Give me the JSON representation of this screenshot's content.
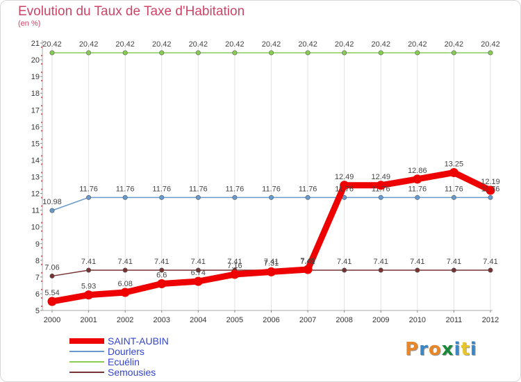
{
  "title": "Evolution du Taux de Taxe d'Habitation",
  "unit": "(en %)",
  "logo": "Proxiti",
  "logo_colors": [
    "#e8872a",
    "#3a87c8",
    "#e8872a",
    "#1a8a3a",
    "#3a87c8",
    "#e8c52a",
    "#3a87c8"
  ],
  "chart_data": {
    "type": "line",
    "title": "Evolution du Taux de Taxe d'Habitation",
    "ylabel": "(en %)",
    "xlabel": "",
    "x": [
      "2000",
      "2001",
      "2002",
      "2003",
      "2004",
      "2005",
      "2006",
      "2007",
      "2008",
      "2009",
      "2010",
      "2011",
      "2012"
    ],
    "ylim": [
      5,
      21
    ],
    "yticks": [
      "5",
      "6",
      "7",
      "8",
      "9",
      "10",
      "11",
      "12",
      "13",
      "14",
      "15",
      "16",
      "17",
      "18",
      "19",
      "20",
      "21"
    ],
    "grid": "vertical",
    "legend_position": "bottom-left",
    "series": [
      {
        "name": "Ecuélin",
        "color": "#88cc55",
        "values": [
          20.42,
          20.42,
          20.42,
          20.42,
          20.42,
          20.42,
          20.42,
          20.42,
          20.42,
          20.42,
          20.42,
          20.42,
          20.42
        ],
        "labels": [
          "20.42",
          "20.42",
          "20.42",
          "20.42",
          "20.42",
          "20.42",
          "20.42",
          "20.42",
          "20.42",
          "20.42",
          "20.42",
          "20.42",
          "20.42"
        ]
      },
      {
        "name": "Dourlers",
        "color": "#6699cc",
        "values": [
          10.98,
          11.76,
          11.76,
          11.76,
          11.76,
          11.76,
          11.76,
          11.76,
          11.76,
          11.76,
          11.76,
          11.76,
          11.76
        ],
        "labels": [
          "10.98",
          "11.76",
          "11.76",
          "11.76",
          "11.76",
          "11.76",
          "11.76",
          "11.76",
          "11.76",
          "11.76",
          "11.76",
          "11.76",
          "11.76"
        ]
      },
      {
        "name": "Semousies",
        "color": "#773333",
        "values": [
          7.06,
          7.41,
          7.41,
          7.41,
          7.41,
          7.41,
          7.41,
          7.41,
          7.41,
          7.41,
          7.41,
          7.41,
          7.41
        ],
        "labels": [
          "7.06",
          "7.41",
          "7.41",
          "7.41",
          "7.41",
          "7.41",
          "7.41",
          "7.41",
          "7.41",
          "7.41",
          "7.41",
          "7.41",
          "7.41"
        ]
      },
      {
        "name": "SAINT-AUBIN",
        "color": "#ee0000",
        "values": [
          5.54,
          5.93,
          6.08,
          6.6,
          6.74,
          7.16,
          7.31,
          7.45,
          12.49,
          12.49,
          12.86,
          13.25,
          12.19
        ],
        "labels": [
          "5.54",
          "5.93",
          "6.08",
          "6.6",
          "6.74",
          "7.16",
          "7.31",
          "7.45",
          "12.49",
          "12.49",
          "12.86",
          "13.25",
          "12.19"
        ]
      }
    ],
    "legend": [
      {
        "name": "SAINT-AUBIN",
        "color": "#ee0000"
      },
      {
        "name": "Dourlers",
        "color": "#6699cc"
      },
      {
        "name": "Ecuélin",
        "color": "#88cc55"
      },
      {
        "name": "Semousies",
        "color": "#773333"
      }
    ]
  }
}
